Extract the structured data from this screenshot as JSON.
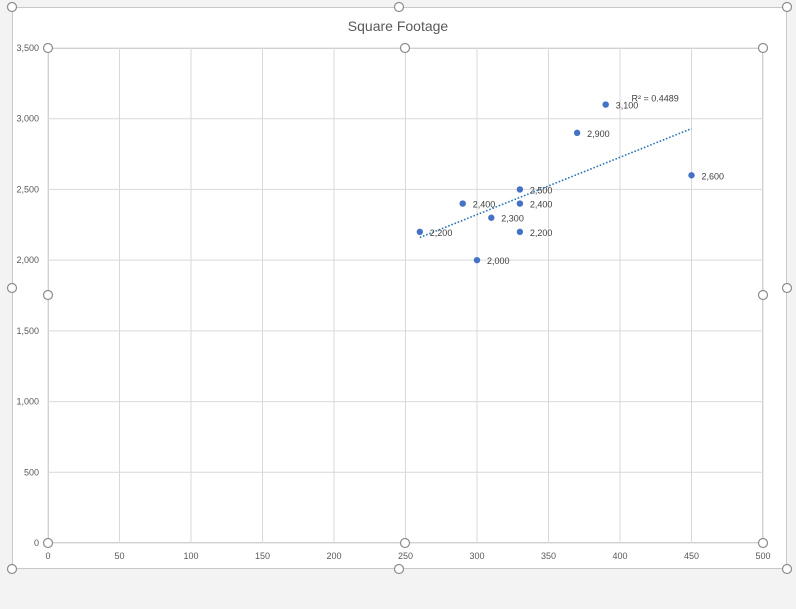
{
  "chart_data": {
    "type": "scatter",
    "title": "Square Footage",
    "xlabel": "",
    "ylabel": "",
    "xlim": [
      0,
      500
    ],
    "ylim": [
      0,
      3500
    ],
    "xticks": [
      0,
      50,
      100,
      150,
      200,
      250,
      300,
      350,
      400,
      450,
      500
    ],
    "yticks": [
      0,
      500,
      1000,
      1500,
      2000,
      2500,
      3000,
      3500
    ],
    "xtick_labels": [
      "0",
      "50",
      "100",
      "150",
      "200",
      "250",
      "300",
      "350",
      "400",
      "450",
      "500"
    ],
    "ytick_labels": [
      "0",
      "500",
      "1,000",
      "1,500",
      "2,000",
      "2,500",
      "3,000",
      "3,500"
    ],
    "grid": true,
    "series": [
      {
        "points": [
          {
            "x": 260,
            "y": 2200,
            "label": "2,200"
          },
          {
            "x": 290,
            "y": 2400,
            "label": "2,400"
          },
          {
            "x": 300,
            "y": 2000,
            "label": "2,000"
          },
          {
            "x": 310,
            "y": 2300,
            "label": "2,300"
          },
          {
            "x": 330,
            "y": 2500,
            "label": "2,500"
          },
          {
            "x": 330,
            "y": 2400,
            "label": "2,400"
          },
          {
            "x": 330,
            "y": 2200,
            "label": "2,200"
          },
          {
            "x": 370,
            "y": 2900,
            "label": "2,900"
          },
          {
            "x": 390,
            "y": 3100,
            "label": "3,100"
          },
          {
            "x": 450,
            "y": 2600,
            "label": "2,600"
          }
        ]
      }
    ],
    "trendline": {
      "type": "linear",
      "x_start": 260,
      "y_start": 2160,
      "x_end": 450,
      "y_end": 2930,
      "r_squared_label": "R² = 0.4489"
    },
    "colors": {
      "point": "#4472c4",
      "trendline": "#2e75b6",
      "grid": "#d9d9d9"
    }
  }
}
